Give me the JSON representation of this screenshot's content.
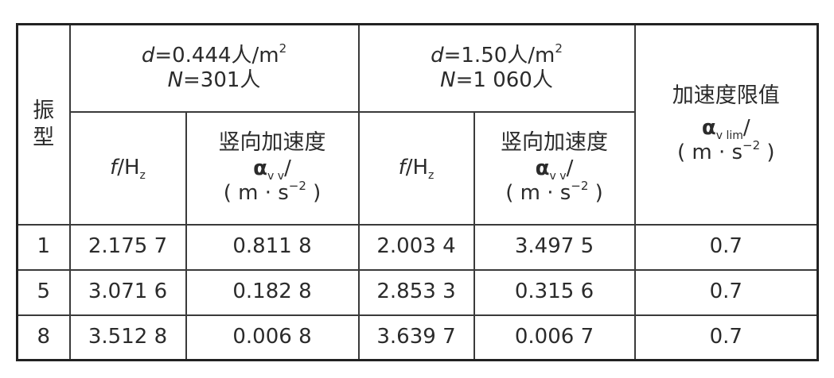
{
  "table": {
    "mode_header": "振型",
    "group1": {
      "d_var": "d",
      "d_text": "=0.444人/m",
      "d_exp": "2",
      "n_var": "N",
      "n_text": "=301人"
    },
    "group2": {
      "d_var": "d",
      "d_text": "=1.50人/m",
      "d_exp": "2",
      "n_var": "N",
      "n_text": "=1 060人"
    },
    "limit_header": "加速度限值",
    "limit_symbol": "α",
    "limit_sub": "v lim",
    "limit_slash": "/",
    "limit_unit_open": "( m · s",
    "limit_unit_exp": "−2",
    "limit_unit_close": " )",
    "freq_var": "f",
    "freq_unit": "/H",
    "freq_sub": "z",
    "accel_header": "竖向加速度",
    "accel_symbol": "α",
    "accel_sub": "v v",
    "accel_slash": "/",
    "accel_unit_open": "( m · s",
    "accel_unit_exp": "−2",
    "accel_unit_close": " )",
    "rows": [
      {
        "mode": "1",
        "f1": "2.175 7",
        "a1": "0.811 8",
        "f2": "2.003 4",
        "a2": "3.497 5",
        "limit": "0.7"
      },
      {
        "mode": "5",
        "f1": "3.071 6",
        "a1": "0.182 8",
        "f2": "2.853 3",
        "a2": "0.315 6",
        "limit": "0.7"
      },
      {
        "mode": "8",
        "f1": "3.512 8",
        "a1": "0.006 8",
        "f2": "3.639 7",
        "a2": "0.006 7",
        "limit": "0.7"
      }
    ]
  }
}
